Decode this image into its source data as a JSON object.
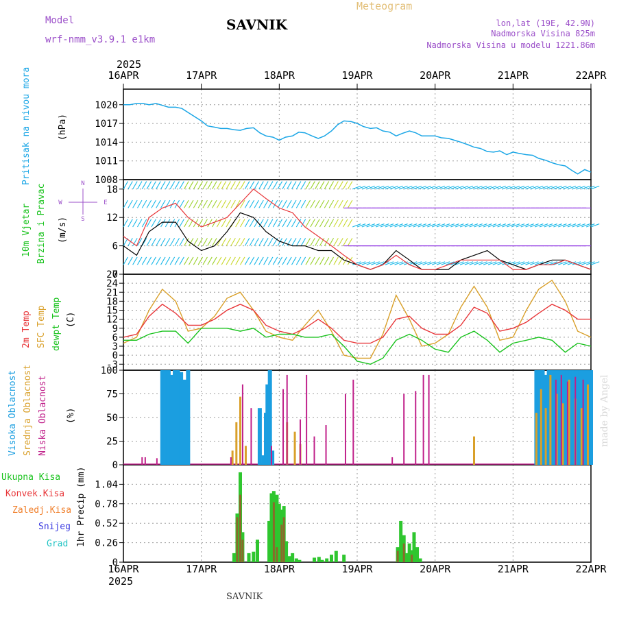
{
  "header": {
    "model_label": "Model",
    "model_name": "wrf-nmm_v3.9.1 e1km",
    "station": "SAVNIK",
    "product": "Meteogram",
    "lonlat": "lon,lat (19E, 42.9N)",
    "altitude": "Nadmorska Visina 825m",
    "model_altitude": "Nadmorska Visina u modelu 1221.86m",
    "year": "2025",
    "footer_station": "SAVNIK",
    "credit": "made by Angel"
  },
  "colors": {
    "pressure": "#1aa6e6",
    "wind_black": "#000000",
    "wind_red": "#e8373a",
    "temp2m": "#e8373a",
    "sfc_temp": "#d9a02a",
    "dewpoint": "#17c21b",
    "cloud_high": "#1b9ee0",
    "cloud_mid": "#d9a02a",
    "cloud_low": "#c0208a",
    "precip_total": "#2fc62f",
    "precip_conv": "#8a6a2a",
    "grid": "#9a9a9a",
    "title_purple": "#9b4fc9",
    "meteogram_gold": "#e3c07a"
  },
  "chart_data": [
    {
      "type": "line",
      "id": "pressure",
      "ylabel": "Pritisak na nivou mora",
      "unit": "(hPa)",
      "ylim": [
        1008,
        1022.5
      ],
      "yticks": [
        1008,
        1011,
        1014,
        1017,
        1020
      ],
      "x_days": [
        "16APR",
        "17APR",
        "18APR",
        "19APR",
        "20APR",
        "21APR",
        "22APR"
      ],
      "x": [
        0,
        0.08,
        0.17,
        0.25,
        0.33,
        0.42,
        0.5,
        0.58,
        0.67,
        0.75,
        0.85,
        1.0,
        1.08,
        1.17,
        1.25,
        1.33,
        1.42,
        1.5,
        1.58,
        1.67,
        1.75,
        1.83,
        1.92,
        2.0,
        2.08,
        2.17,
        2.25,
        2.33,
        2.42,
        2.5,
        2.58,
        2.67,
        2.75,
        2.83,
        2.92,
        3.0,
        3.08,
        3.17,
        3.25,
        3.33,
        3.42,
        3.5,
        3.58,
        3.67,
        3.75,
        3.83,
        3.92,
        4.0,
        4.08,
        4.17,
        4.25,
        4.33,
        4.42,
        4.5,
        4.58,
        4.67,
        4.75,
        4.83,
        4.92,
        5.0,
        5.08,
        5.17,
        5.25,
        5.33,
        5.42,
        5.5,
        5.58,
        5.67,
        5.75,
        5.83,
        5.92,
        6.0
      ],
      "series": [
        {
          "values": [
            1020.0,
            1020.0,
            1020.2,
            1020.2,
            1020.0,
            1020.2,
            1019.9,
            1019.6,
            1019.6,
            1019.4,
            1018.6,
            1017.4,
            1016.6,
            1016.4,
            1016.2,
            1016.2,
            1016.0,
            1015.9,
            1016.2,
            1016.3,
            1015.5,
            1015.0,
            1014.8,
            1014.3,
            1014.8,
            1015.0,
            1015.6,
            1015.5,
            1015.0,
            1014.6,
            1015.0,
            1015.8,
            1016.8,
            1017.4,
            1017.3,
            1017.0,
            1016.5,
            1016.2,
            1016.3,
            1015.8,
            1015.6,
            1015.0,
            1015.4,
            1015.8,
            1015.5,
            1015.0,
            1015.0,
            1015.0,
            1014.7,
            1014.6,
            1014.3,
            1014.0,
            1013.6,
            1013.2,
            1013.0,
            1012.5,
            1012.4,
            1012.6,
            1012.0,
            1012.4,
            1012.2,
            1012.0,
            1011.9,
            1011.4,
            1011.1,
            1010.7,
            1010.4,
            1010.2,
            1009.5,
            1008.9,
            1009.6,
            1009.2
          ]
        }
      ]
    },
    {
      "type": "line",
      "id": "wind",
      "ylabel": "10m Vjetar Brzina i Pravac",
      "unit": "(m/s)",
      "ylim": [
        0,
        20
      ],
      "yticks": [
        0,
        6,
        12,
        18
      ],
      "compass": {
        "north": "N",
        "south": "S",
        "west": "W",
        "east": "E"
      },
      "x": [
        0,
        0.17,
        0.33,
        0.5,
        0.67,
        0.83,
        1.0,
        1.17,
        1.33,
        1.5,
        1.67,
        1.83,
        2.0,
        2.17,
        2.33,
        2.5,
        2.67,
        2.83,
        3.0,
        3.17,
        3.33,
        3.5,
        3.67,
        3.83,
        4.0,
        4.17,
        4.33,
        4.5,
        4.67,
        4.83,
        5.0,
        5.17,
        5.33,
        5.5,
        5.67,
        5.83,
        6.0
      ],
      "series": [
        {
          "name": "black",
          "values": [
            6,
            4,
            9,
            11,
            11,
            7,
            5,
            6,
            9,
            13,
            12,
            9,
            7,
            6,
            6,
            5,
            5,
            3,
            2,
            1,
            2,
            5,
            3,
            1,
            1,
            1,
            3,
            4,
            5,
            3,
            2,
            1,
            2,
            3,
            3,
            2,
            1
          ]
        },
        {
          "name": "red",
          "values": [
            8,
            6,
            12,
            14,
            15,
            12,
            10,
            11,
            12,
            15,
            18,
            16,
            14,
            13,
            10,
            8,
            6,
            4,
            2,
            1,
            2,
            4,
            2,
            1,
            1,
            2,
            3,
            3,
            3,
            3,
            1,
            1,
            2,
            2,
            3,
            2,
            1
          ]
        }
      ]
    },
    {
      "type": "line",
      "id": "temperature",
      "ylabel": [
        "2m Temp",
        "SFC Temp",
        "dewpt Temp"
      ],
      "unit": "(C)",
      "ylim": [
        -5,
        27
      ],
      "yticks": [
        -3,
        0,
        3,
        6,
        9,
        12,
        15,
        18,
        21,
        24,
        27
      ],
      "x": [
        0,
        0.17,
        0.33,
        0.5,
        0.67,
        0.83,
        1.0,
        1.17,
        1.33,
        1.5,
        1.67,
        1.83,
        2.0,
        2.17,
        2.33,
        2.5,
        2.67,
        2.83,
        3.0,
        3.17,
        3.33,
        3.5,
        3.67,
        3.83,
        4.0,
        4.17,
        4.33,
        4.5,
        4.67,
        4.83,
        5.0,
        5.17,
        5.33,
        5.5,
        5.67,
        5.83,
        6.0
      ],
      "series": [
        {
          "name": "2m Temp",
          "values": [
            6,
            7,
            13,
            17,
            14,
            10,
            10,
            12,
            15,
            17,
            15,
            10,
            8,
            7,
            9,
            12,
            9,
            5,
            4,
            4,
            6,
            12,
            13,
            9,
            7,
            7,
            10,
            16,
            14,
            8,
            9,
            11,
            14,
            17,
            15,
            12,
            12
          ]
        },
        {
          "name": "SFC Temp",
          "values": [
            4,
            6,
            15,
            22,
            18,
            8,
            9,
            13,
            19,
            21,
            15,
            8,
            6,
            5,
            10,
            15,
            8,
            0,
            -1,
            -1,
            7,
            20,
            12,
            3,
            4,
            7,
            16,
            23,
            16,
            5,
            6,
            15,
            22,
            25,
            18,
            8,
            6
          ]
        },
        {
          "name": "dewpt Temp",
          "values": [
            5,
            5,
            7,
            8,
            8,
            4,
            9,
            9,
            9,
            8,
            9,
            6,
            7,
            7,
            6,
            6,
            7,
            3,
            -2,
            -3,
            -1,
            5,
            7,
            5,
            2,
            1,
            6,
            8,
            5,
            1,
            4,
            5,
            6,
            5,
            1,
            4,
            3
          ]
        }
      ]
    },
    {
      "type": "bar",
      "id": "clouds",
      "ylabel": [
        "Visoka Oblacnost",
        "Srednja Oblacnost",
        "Niska Oblacnost"
      ],
      "unit": "(%)",
      "ylim": [
        0,
        100
      ],
      "yticks": [
        0,
        25,
        50,
        75,
        100
      ],
      "series": [
        {
          "name": "Visoka Oblacnost",
          "x": [
            0.5,
            0.55,
            0.58,
            0.62,
            0.66,
            0.7,
            0.74,
            0.79,
            0.83,
            1.75,
            1.8,
            1.83,
            1.85,
            1.88,
            1.91,
            5.3,
            5.34,
            5.38,
            5.42,
            5.46,
            5.5,
            5.54,
            5.58,
            5.62,
            5.66,
            5.7,
            5.74,
            5.78,
            5.82,
            5.86,
            5.9,
            5.95,
            6.0
          ],
          "values": [
            100,
            100,
            100,
            95,
            100,
            100,
            98,
            90,
            100,
            60,
            10,
            55,
            85,
            100,
            15,
            100,
            100,
            100,
            95,
            100,
            100,
            100,
            100,
            100,
            100,
            100,
            100,
            100,
            100,
            100,
            100,
            100,
            100
          ]
        },
        {
          "name": "Srednja Oblacnost",
          "x": [
            1.4,
            1.45,
            1.5,
            1.57,
            2.1,
            2.2,
            2.27,
            5.3,
            5.36,
            5.42,
            5.48,
            5.56,
            5.64,
            5.72,
            5.8,
            5.88,
            5.96,
            4.5
          ],
          "values": [
            15,
            45,
            72,
            20,
            45,
            35,
            22,
            55,
            80,
            60,
            95,
            75,
            65,
            90,
            70,
            60,
            85,
            30
          ]
        },
        {
          "name": "Niska Oblacnost",
          "x": [
            0.24,
            0.28,
            0.43,
            1.38,
            1.53,
            1.64,
            1.9,
            2.05,
            2.1,
            2.27,
            2.35,
            2.45,
            2.6,
            2.85,
            2.95,
            3.45,
            3.6,
            3.75,
            3.85,
            3.92,
            5.55,
            5.62,
            5.7,
            5.8,
            5.9
          ],
          "values": [
            8,
            8,
            7,
            8,
            85,
            60,
            20,
            80,
            95,
            48,
            95,
            30,
            42,
            75,
            90,
            8,
            75,
            78,
            95,
            95,
            90,
            95,
            88,
            93,
            90
          ]
        }
      ]
    },
    {
      "type": "bar",
      "id": "precip",
      "legend": [
        "Ukupna Kisa",
        "Konvek.Kisa",
        "Zaledj.Kisa",
        "Snijeg",
        "Grad"
      ],
      "ylabel": "1hr Precip (mm)",
      "ylim": [
        0,
        1.3
      ],
      "yticks": [
        0,
        0.26,
        0.52,
        0.78,
        1.04
      ],
      "series": [
        {
          "name": "Ukupna Kisa",
          "x": [
            1.42,
            1.46,
            1.5,
            1.53,
            1.61,
            1.67,
            1.72,
            1.87,
            1.9,
            1.93,
            1.97,
            2.0,
            2.03,
            2.06,
            2.09,
            2.13,
            2.17,
            2.22,
            2.26,
            2.45,
            2.51,
            2.55,
            2.61,
            2.67,
            2.73,
            2.83,
            3.52,
            3.56,
            3.6,
            3.63,
            3.67,
            3.7,
            3.73,
            3.77,
            3.81
          ],
          "values": [
            0.12,
            0.65,
            1.2,
            0.4,
            0.12,
            0.14,
            0.3,
            0.55,
            0.92,
            0.95,
            0.9,
            0.78,
            0.7,
            0.75,
            0.28,
            0.08,
            0.12,
            0.05,
            0.03,
            0.06,
            0.07,
            0.03,
            0.05,
            0.1,
            0.15,
            0.1,
            0.2,
            0.55,
            0.36,
            0.12,
            0.25,
            0.16,
            0.4,
            0.2,
            0.05
          ]
        },
        {
          "name": "Konvek.Kisa",
          "x": [
            1.46,
            1.5,
            1.53,
            1.93,
            1.97,
            2.03,
            2.06,
            3.52,
            3.6,
            3.7
          ],
          "values": [
            0.6,
            0.9,
            0.3,
            0.8,
            0.2,
            0.5,
            0.6,
            0.15,
            0.25,
            0.1
          ]
        }
      ]
    }
  ]
}
